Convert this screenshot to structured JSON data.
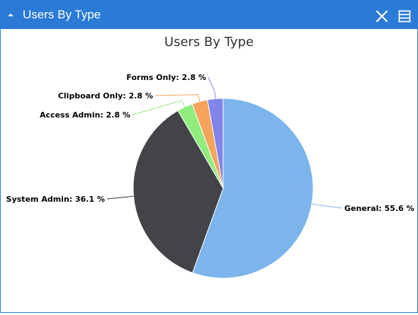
{
  "header": {
    "title": "Users By Type",
    "accent_color": "#2a7ad6",
    "icons": [
      "caret-up-icon",
      "close-icon",
      "menu-icon"
    ]
  },
  "chart_data": {
    "type": "pie",
    "title": "Users By Type",
    "unit": "%",
    "slices": [
      {
        "label": "General",
        "value": 55.6,
        "display": "General: 55.6 %",
        "color": "#7cb5ec"
      },
      {
        "label": "System Admin",
        "value": 36.1,
        "display": "System Admin: 36.1 %",
        "color": "#434348"
      },
      {
        "label": "Access Admin",
        "value": 2.8,
        "display": "Access Admin: 2.8 %",
        "color": "#90ed7d"
      },
      {
        "label": "Clipboard Only",
        "value": 2.8,
        "display": "Clipboard Only: 2.8 %",
        "color": "#f7a35c"
      },
      {
        "label": "Forms Only",
        "value": 2.8,
        "display": "Forms Only: 2.8 %",
        "color": "#8085e9"
      }
    ]
  }
}
